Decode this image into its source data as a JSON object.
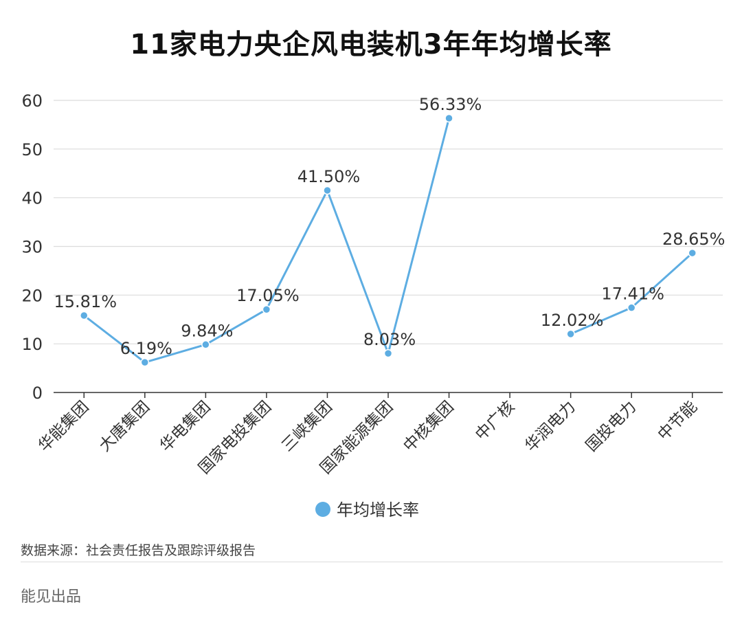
{
  "title": "11家电力央企风电装机3年年均增长率",
  "source": "数据来源：社会责任报告及跟踪评级报告",
  "brand": "能见出品",
  "colors": {
    "line": "#5dade2",
    "grid": "#dcdcdc",
    "axis": "#333333"
  },
  "chart_data": {
    "type": "line",
    "categories": [
      "华能集团",
      "大唐集团",
      "华电集团",
      "国家电投集团",
      "三峡集团",
      "国家能源集团",
      "中核集团",
      "中广核",
      "华润电力",
      "国投电力",
      "中节能"
    ],
    "series": [
      {
        "name": "年均增长率",
        "values": [
          15.81,
          6.19,
          9.84,
          17.05,
          41.5,
          8.03,
          56.33,
          null,
          12.02,
          17.41,
          28.65
        ],
        "labels": [
          "15.81%",
          "6.19%",
          "9.84%",
          "17.05%",
          "41.50%",
          "8.03%",
          "56.33%",
          "",
          "12.02%",
          "17.41%",
          "28.65%"
        ]
      }
    ],
    "yticks": [
      0,
      10,
      20,
      30,
      40,
      50,
      60
    ],
    "ylim": [
      0,
      60
    ],
    "grid": true,
    "legend": "bottom-center"
  }
}
